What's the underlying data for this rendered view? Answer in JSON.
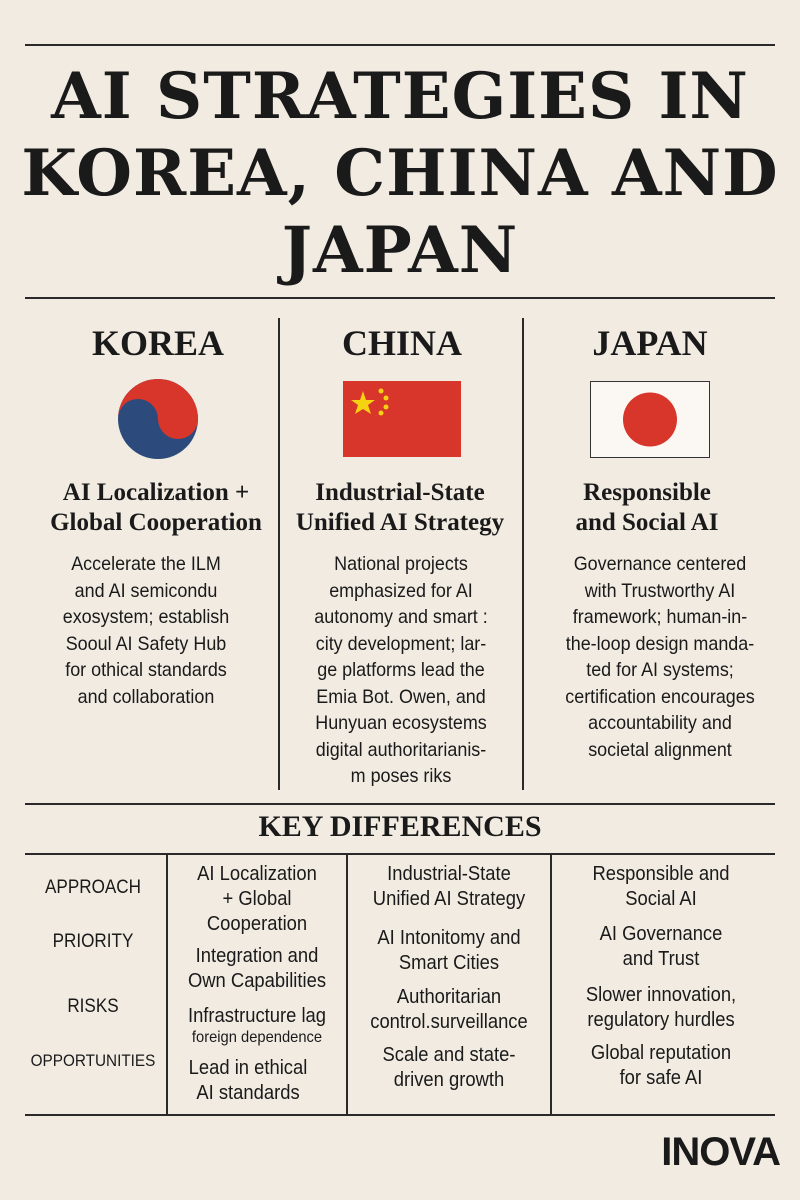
{
  "title": {
    "line1": "AI STRATEGIES IN",
    "line2": "KOREA, CHINA  AND",
    "line3": "JAPAN"
  },
  "countries": [
    {
      "name": "KOREA",
      "flag": "korea-taegeuk",
      "subtitle1": "AI Localization +",
      "subtitle2": "Global Cooperation",
      "body": [
        "Accelerate the ILM",
        "and AI semicondu",
        "exosystem; establish",
        "Sooul AI Safety Hub",
        "for othical standards",
        "and collaboration"
      ]
    },
    {
      "name": "CHINA",
      "flag": "china",
      "subtitle1": "Industrial-State",
      "subtitle2": "Unified AI Strategy",
      "body": [
        "National projects",
        "emphasized for AI",
        "autonomy and smart :",
        "city development; lar-",
        "ge platforms lead the",
        "Emia Bot. Owen, and",
        "Hunyuan ecosystems",
        "digital authoritarianis-",
        "m poses riks"
      ]
    },
    {
      "name": "JAPAN",
      "flag": "japan",
      "subtitle1": "Responsible",
      "subtitle2": "and Social AI",
      "body": [
        "Governance centered",
        "with Trustworthy AI",
        "framework; human-in-",
        "the-loop design manda-",
        "ted for AI systems;",
        "certification encourages",
        "accountability and",
        "societal alignment"
      ]
    }
  ],
  "key_differences": {
    "heading": "KEY DIFFERENCES",
    "labels": [
      "APPROACH",
      "PRIORITY",
      "RISKS",
      "OPPORTUNITIES"
    ],
    "korea": {
      "approach": [
        "AI Localization",
        "+ Global",
        "Cooperation"
      ],
      "priority": [
        "Integration and",
        "Own Capabilities"
      ],
      "risks": [
        "Infrastructure lag"
      ],
      "risks_small": "foreign dependence",
      "opportunities": [
        "Lead in ethical",
        "AI standards"
      ]
    },
    "china": {
      "approach": [
        "Industrial-State",
        "Unified AI Strategy"
      ],
      "priority": [
        "AI Intonitomy and",
        "Smart Cities"
      ],
      "risks": [
        "Authoritarian",
        "control.surveillance"
      ],
      "opportunities": [
        "Scale and state-",
        "driven growth"
      ]
    },
    "japan": {
      "approach": [
        "Responsible and",
        "Social AI"
      ],
      "priority": [
        "AI Governance",
        "and Trust"
      ],
      "risks": [
        "Slower innovation,",
        "regulatory hurdles"
      ],
      "opportunities": [
        "Global reputation",
        "for safe AI"
      ]
    }
  },
  "logo": "INOVA",
  "colors": {
    "background": "#f1ebe2",
    "red": "#d8352b",
    "blue": "#2d4a7c",
    "yellow": "#f5d311"
  }
}
